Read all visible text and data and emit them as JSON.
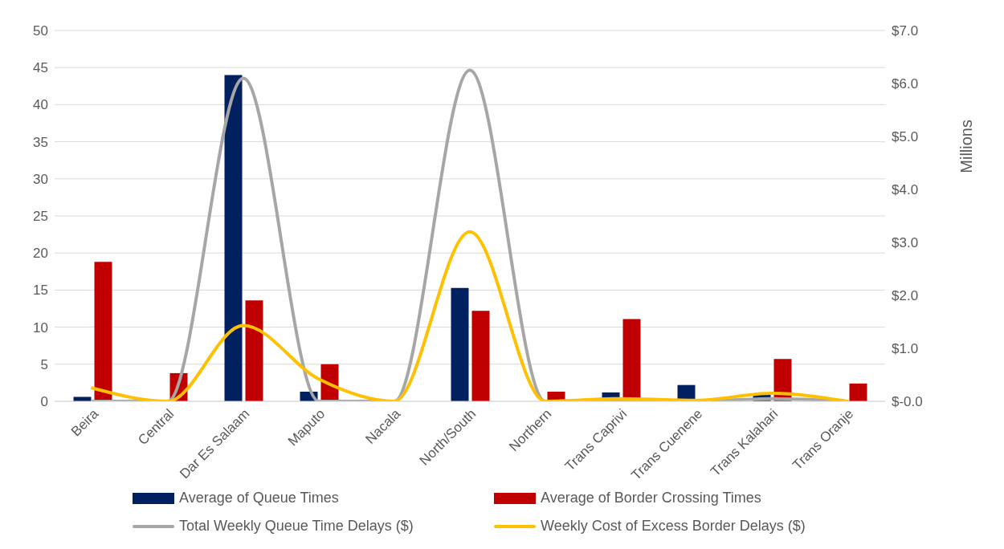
{
  "chart_data": {
    "type": "bar",
    "categories": [
      "Beira",
      "Central",
      "Dar Es Salaam",
      "Maputo",
      "Nacala",
      "North/South",
      "Northern",
      "Trans Caprivi",
      "Trans Cuenene",
      "Trans Kalahari",
      "Trans Oranje"
    ],
    "series": [
      {
        "name": "Average of Queue Times",
        "type": "bar",
        "color": "#002060",
        "values": [
          0.6,
          0,
          44,
          1.3,
          0,
          15.3,
          0,
          1.2,
          2.2,
          1.0,
          0
        ]
      },
      {
        "name": "Average of Border Crossing Times",
        "type": "bar",
        "color": "#c00000",
        "values": [
          18.8,
          3.8,
          13.6,
          5.0,
          0,
          12.2,
          1.3,
          11.1,
          0,
          5.7,
          2.4
        ]
      },
      {
        "name": "Total Weekly Queue Time Delays ($)",
        "type": "line",
        "axis": "y2",
        "color": "#a6a6a6",
        "values": [
          0,
          0,
          6.1,
          0,
          0,
          6.25,
          0,
          0,
          0,
          0.05,
          0
        ]
      },
      {
        "name": "Weekly Cost of Excess Border Delays ($)",
        "type": "line",
        "axis": "y2",
        "color": "#ffc000",
        "values": [
          0.25,
          0,
          1.43,
          0.42,
          0,
          3.2,
          0,
          0.05,
          0.02,
          0.15,
          0
        ]
      }
    ],
    "ylim": [
      0,
      50
    ],
    "yticks": [
      0,
      5,
      10,
      15,
      20,
      25,
      30,
      35,
      40,
      45,
      50
    ],
    "y2lim": [
      0,
      7
    ],
    "y2ticks": [
      {
        "value": 0,
        "label": "$-0.0"
      },
      {
        "value": 1,
        "label": "$1.0"
      },
      {
        "value": 2,
        "label": "$2.0"
      },
      {
        "value": 3,
        "label": "$3.0"
      },
      {
        "value": 4,
        "label": "$4.0"
      },
      {
        "value": 5,
        "label": "$5.0"
      },
      {
        "value": 6,
        "label": "$6.0"
      },
      {
        "value": 7,
        "label": "$7.0"
      }
    ],
    "y2label": "Millions",
    "grid": "y",
    "legend": "bottom",
    "marker": "none",
    "line_style": "solid"
  }
}
